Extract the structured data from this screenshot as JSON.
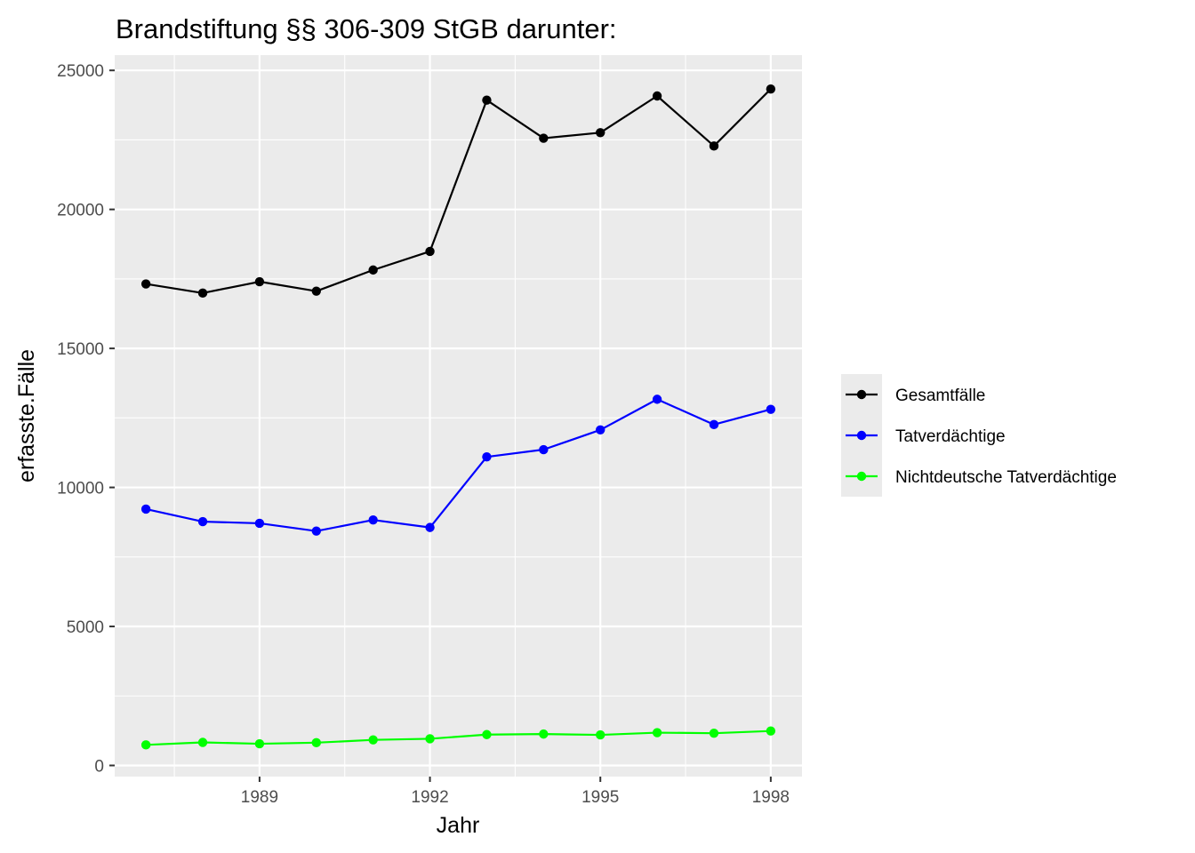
{
  "chart_data": {
    "type": "line",
    "title": "Brandstiftung §§ 306-309 StGB darunter:",
    "xlabel": "Jahr",
    "ylabel": "erfasste.Fälle",
    "x": [
      1987,
      1988,
      1989,
      1990,
      1991,
      1992,
      1993,
      1994,
      1995,
      1996,
      1997,
      1998
    ],
    "xlim": [
      1986.45,
      1998.55
    ],
    "ylim": [
      -400,
      25550
    ],
    "x_ticks": [
      1989,
      1992,
      1995,
      1998
    ],
    "y_ticks": [
      0,
      5000,
      10000,
      15000,
      20000,
      25000
    ],
    "grid": true,
    "legend_position": "right",
    "series": [
      {
        "name": "Gesamtfälle",
        "color": "#000000",
        "values": [
          17320,
          16990,
          17400,
          17060,
          17820,
          18490,
          23930,
          22560,
          22760,
          24080,
          22280,
          24330
        ]
      },
      {
        "name": "Tatverdächtige",
        "color": "#0000ff",
        "values": [
          9220,
          8770,
          8710,
          8430,
          8830,
          8560,
          11100,
          11360,
          12070,
          13170,
          12260,
          12810
        ]
      },
      {
        "name": "Nichtdeutsche Tatverdächtige",
        "color": "#00ff00",
        "values": [
          740,
          830,
          780,
          820,
          920,
          960,
          1110,
          1130,
          1100,
          1180,
          1160,
          1240
        ]
      }
    ]
  }
}
